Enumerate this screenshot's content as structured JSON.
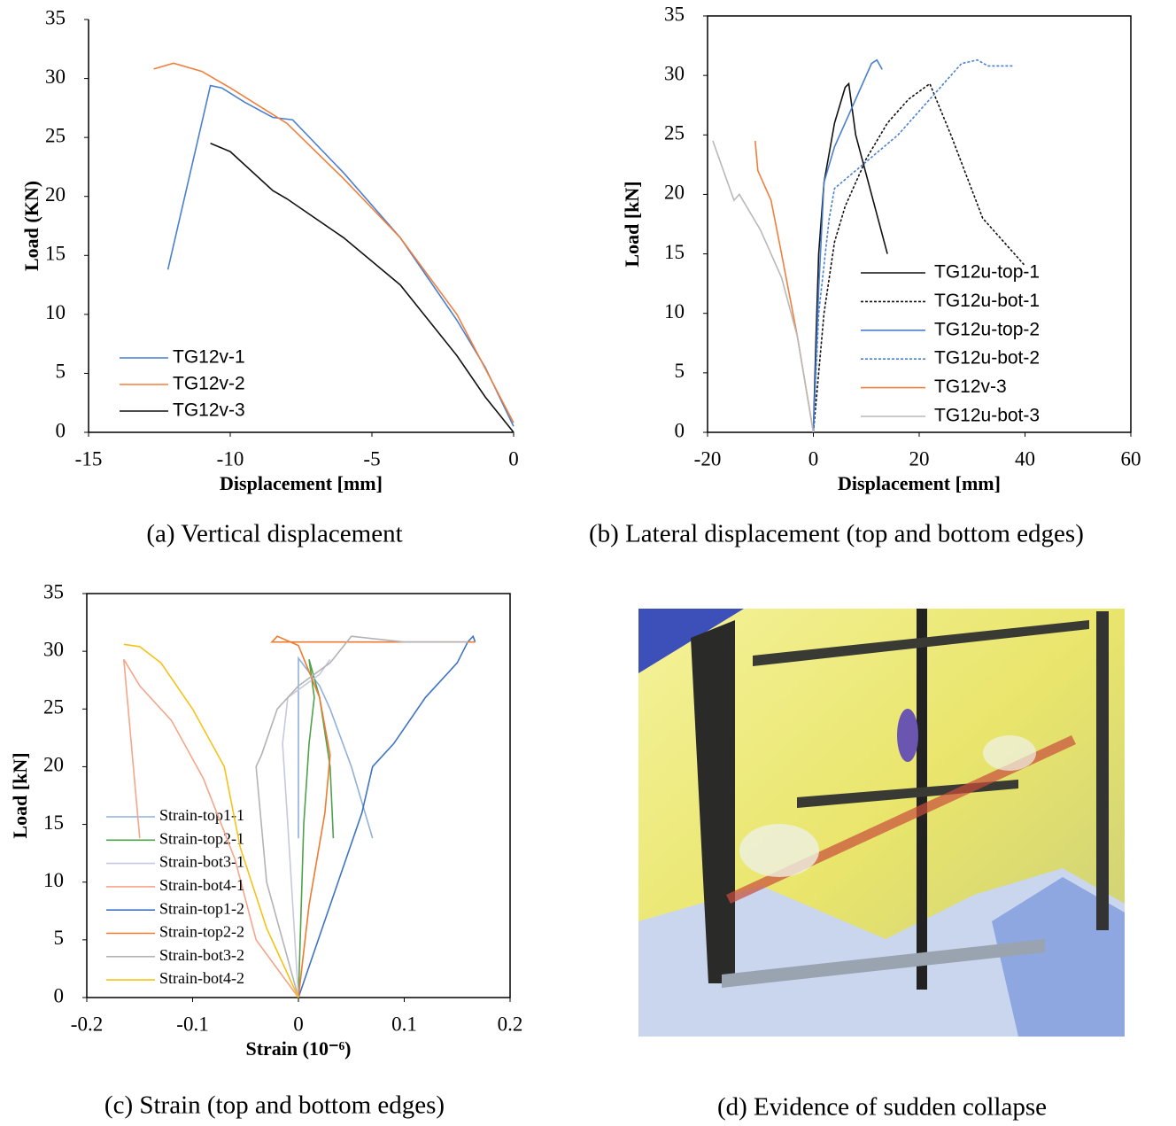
{
  "chart_data": [
    {
      "type": "line",
      "caption": "(a) Vertical displacement",
      "xlabel": "Displacement [mm]",
      "ylabel": "Load (KN)",
      "xlim": [
        -15,
        0
      ],
      "ylim": [
        0,
        35
      ],
      "xticks": [
        -15,
        -10,
        -5,
        0
      ],
      "yticks": [
        0,
        5,
        10,
        15,
        20,
        25,
        30,
        35
      ],
      "series": [
        {
          "name": "TG12v-1",
          "color": "#4a7fd0",
          "x": [
            -12.2,
            -10.7,
            -10.3,
            -9.5,
            -8.5,
            -7.8,
            -6,
            -4,
            -2,
            -1,
            0
          ],
          "values": [
            13.8,
            29.4,
            29.2,
            28,
            26.7,
            26.5,
            22,
            16.5,
            9.5,
            5.5,
            0.5
          ]
        },
        {
          "name": "TG12v-2",
          "color": "#f07f3c",
          "x": [
            -12.7,
            -12,
            -11,
            -10,
            -8,
            -6,
            -5,
            -4,
            -2,
            0
          ],
          "values": [
            30.8,
            31.3,
            30.6,
            29.2,
            26.2,
            21.5,
            19,
            16.5,
            10,
            0.8
          ]
        },
        {
          "name": "TG12v-3",
          "color": "#111111",
          "x": [
            -10.7,
            -10,
            -8.5,
            -8,
            -6,
            -4,
            -2,
            -1,
            0
          ],
          "values": [
            24.5,
            23.8,
            20.5,
            19.8,
            16.5,
            12.5,
            6.5,
            3,
            0
          ]
        }
      ]
    },
    {
      "type": "line",
      "caption": "(b) Lateral displacement (top and bottom edges)",
      "xlabel": "Displacement [mm]",
      "ylabel": "Load  [kN]",
      "xlim": [
        -20,
        60
      ],
      "ylim": [
        0,
        35
      ],
      "xticks": [
        -20,
        0,
        20,
        40,
        60
      ],
      "yticks": [
        0,
        5,
        10,
        15,
        20,
        25,
        30,
        35
      ],
      "series": [
        {
          "name": "TG12u-top-1",
          "color": "#111111",
          "linestyle": "solid",
          "x": [
            0,
            0.5,
            1,
            2,
            4,
            6,
            6.7,
            8,
            14
          ],
          "values": [
            0,
            8,
            15,
            21,
            26,
            29,
            29.3,
            25,
            15
          ]
        },
        {
          "name": "TG12u-bot-1",
          "color": "#111111",
          "linestyle": "dotted",
          "x": [
            0,
            2,
            4,
            6,
            10,
            14,
            18,
            22,
            26,
            32,
            40
          ],
          "values": [
            0,
            10,
            16,
            19,
            23,
            26,
            28,
            29.3,
            25,
            18,
            14
          ]
        },
        {
          "name": "TG12u-top-2",
          "color": "#4a7fd0",
          "linestyle": "solid",
          "x": [
            0,
            1,
            2,
            4,
            8,
            11,
            12,
            13
          ],
          "values": [
            0,
            12,
            21,
            24,
            28,
            31,
            31.3,
            30.5
          ]
        },
        {
          "name": "TG12u-bot-2",
          "color": "#4a7fd0",
          "linestyle": "dotted",
          "x": [
            0,
            1,
            3,
            4,
            8,
            16,
            22,
            28,
            31,
            33,
            38
          ],
          "values": [
            0,
            10,
            18,
            20.5,
            22,
            25,
            28,
            31,
            31.3,
            30.8,
            30.8
          ]
        },
        {
          "name": "TG12v-3",
          "color": "#f07f3c",
          "linestyle": "solid",
          "x": [
            -11,
            -10.5,
            -8,
            -6,
            -3,
            0
          ],
          "values": [
            24.5,
            22,
            19.5,
            15,
            8,
            0
          ]
        },
        {
          "name": "TG12u-bot-3",
          "color": "#b8b8b8",
          "linestyle": "solid",
          "x": [
            -19,
            -17,
            -15,
            -14,
            -10,
            -6,
            -3,
            0
          ],
          "values": [
            24.5,
            22,
            19.5,
            20,
            17,
            13,
            8,
            0
          ]
        }
      ]
    },
    {
      "type": "line",
      "caption": "(c) Strain (top and bottom edges)",
      "xlabel": "Strain (10⁻⁶)",
      "ylabel": "Load  [kN]",
      "xlim": [
        -0.2,
        0.2
      ],
      "ylim": [
        0,
        35
      ],
      "xticks": [
        -0.2,
        -0.1,
        0,
        0.1,
        0.2
      ],
      "yticks": [
        0,
        5,
        10,
        15,
        20,
        25,
        30,
        35
      ],
      "series": [
        {
          "name": "Strain-top1-1",
          "color": "#8fb0dc",
          "x": [
            0,
            0,
            0.02,
            0.03,
            0.05,
            0.07
          ],
          "values": [
            13.8,
            29.4,
            27,
            25,
            20,
            13.8
          ]
        },
        {
          "name": "Strain-top2-1",
          "color": "#4ea24a",
          "x": [
            0,
            0.005,
            0.01,
            0.015,
            0.01,
            0.02,
            0.03,
            0.033
          ],
          "values": [
            0,
            15,
            22,
            26,
            29.3,
            26,
            20,
            13.8
          ]
        },
        {
          "name": "Strain-bot3-1",
          "color": "#c5c8e0",
          "x": [
            0,
            -0.01,
            -0.015,
            -0.01,
            0.02,
            0.03
          ],
          "values": [
            0,
            15,
            22,
            26,
            28,
            29.3
          ]
        },
        {
          "name": "Strain-bot4-1",
          "color": "#f4a58a",
          "x": [
            -0.15,
            -0.165,
            -0.15,
            -0.12,
            -0.09,
            -0.06,
            -0.04,
            0
          ],
          "values": [
            13.8,
            29.3,
            27,
            24,
            19,
            12,
            5,
            0
          ]
        },
        {
          "name": "Strain-top1-2",
          "color": "#3e73c4",
          "x": [
            0,
            0.03,
            0.06,
            0.07,
            0.09,
            0.12,
            0.15,
            0.16,
            0.165,
            0.167
          ],
          "values": [
            0,
            8,
            16,
            20,
            22,
            26,
            29,
            30.8,
            31.3,
            30.8
          ]
        },
        {
          "name": "Strain-top2-2",
          "color": "#ef7a30",
          "x": [
            0,
            0.01,
            0.025,
            0.03,
            0.02,
            0,
            -0.02,
            -0.025,
            0.167
          ],
          "values": [
            0,
            8,
            16,
            21,
            26,
            30.5,
            31.3,
            30.8,
            30.8
          ]
        },
        {
          "name": "Strain-bot3-2",
          "color": "#b3b3b3",
          "x": [
            0,
            -0.03,
            -0.04,
            -0.035,
            -0.02,
            0,
            0.03,
            0.05,
            0.1,
            0.16
          ],
          "values": [
            0,
            10,
            20,
            21,
            25,
            27,
            29,
            31.3,
            30.8,
            30.8
          ]
        },
        {
          "name": "Strain-bot4-2",
          "color": "#f5c218",
          "x": [
            0,
            -0.03,
            -0.055,
            -0.07,
            -0.1,
            -0.13,
            -0.15,
            -0.165
          ],
          "values": [
            0,
            6,
            13,
            20,
            25,
            29,
            30.4,
            30.6
          ]
        }
      ]
    }
  ],
  "photo": {
    "caption": "(d) Evidence of sudden collapse"
  }
}
